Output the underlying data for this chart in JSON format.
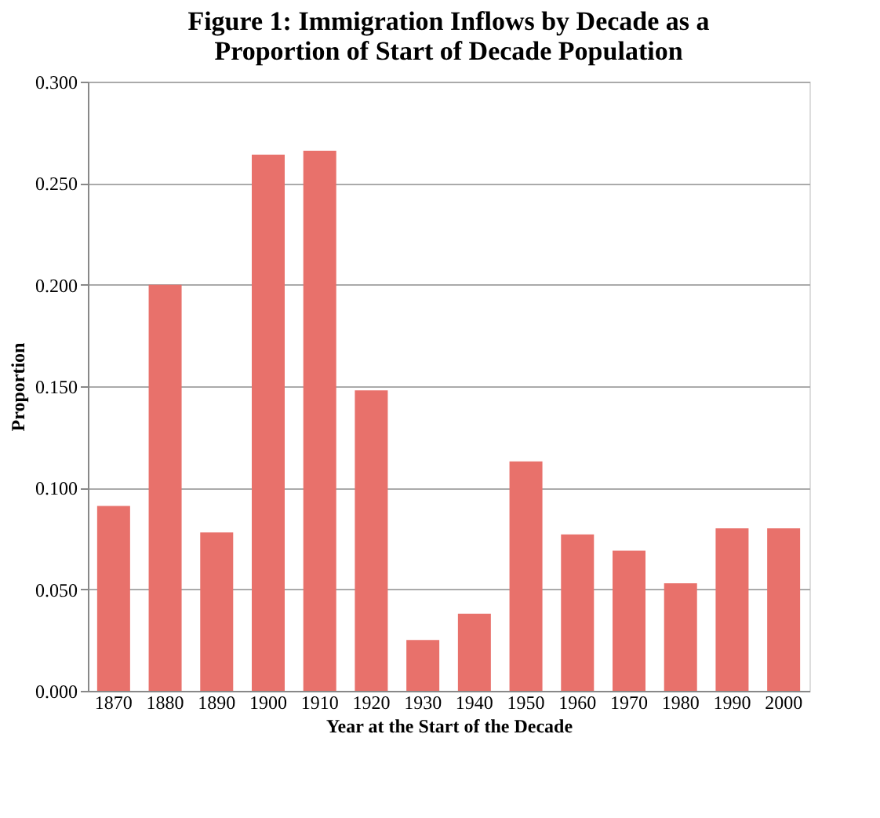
{
  "chart_data": {
    "type": "bar",
    "title": [
      "Figure 1: Immigration Inflows by Decade as a",
      "Proportion of Start of Decade Population"
    ],
    "xlabel": "Year at the Start of the Decade",
    "ylabel": "Proportion",
    "categories": [
      "1870",
      "1880",
      "1890",
      "1900",
      "1910",
      "1920",
      "1930",
      "1940",
      "1950",
      "1960",
      "1970",
      "1980",
      "1990",
      "2000"
    ],
    "values": [
      0.091,
      0.2,
      0.078,
      0.264,
      0.266,
      0.148,
      0.025,
      0.038,
      0.113,
      0.077,
      0.069,
      0.053,
      0.08,
      0.08
    ],
    "color": "#e8716b",
    "ylim": [
      0,
      0.3
    ],
    "yticks": [
      {
        "value": 0,
        "label": "0.000"
      },
      {
        "value": 0.05,
        "label": "0.050"
      },
      {
        "value": 0.1,
        "label": "0.100"
      },
      {
        "value": 0.15,
        "label": "0.150"
      },
      {
        "value": 0.2,
        "label": "0.200"
      },
      {
        "value": 0.25,
        "label": "0.250"
      },
      {
        "value": 0.3,
        "label": "0.300"
      }
    ],
    "grid": "y"
  }
}
